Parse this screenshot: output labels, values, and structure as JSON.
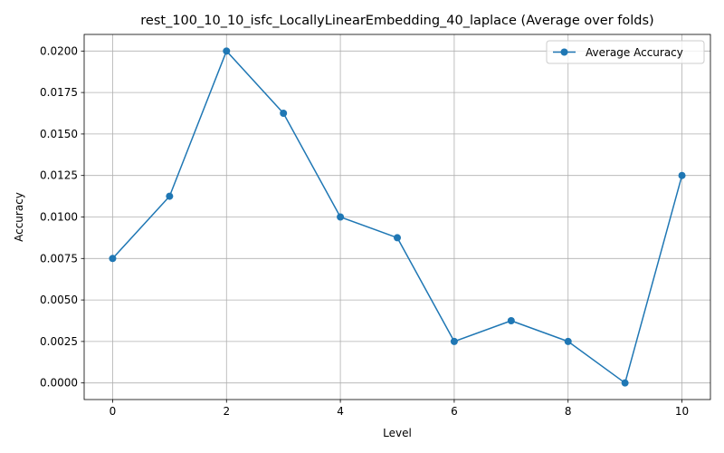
{
  "chart_data": {
    "type": "line",
    "title": "rest_100_10_10_isfc_LocallyLinearEmbedding_40_laplace (Average over folds)",
    "xlabel": "Level",
    "ylabel": "Accuracy",
    "xlim": [
      -0.5,
      10.5
    ],
    "ylim": [
      -0.001,
      0.021
    ],
    "xticks": [
      0,
      2,
      4,
      6,
      8,
      10
    ],
    "xtick_labels": [
      "0",
      "2",
      "4",
      "6",
      "8",
      "10"
    ],
    "yticks": [
      0.0,
      0.0025,
      0.005,
      0.0075,
      0.01,
      0.0125,
      0.015,
      0.0175,
      0.02
    ],
    "ytick_labels": [
      "0.0000",
      "0.0025",
      "0.0050",
      "0.0075",
      "0.0100",
      "0.0125",
      "0.0150",
      "0.0175",
      "0.0200"
    ],
    "grid": true,
    "legend_position": "top-right",
    "color": "#1f77b4",
    "series": [
      {
        "name": "Average Accuracy",
        "x": [
          0,
          1,
          2,
          3,
          4,
          5,
          6,
          7,
          8,
          9,
          10
        ],
        "values": [
          0.0075,
          0.01125,
          0.02,
          0.01625,
          0.01,
          0.00875,
          0.0025,
          0.00375,
          0.0025,
          0.0,
          0.0125
        ]
      }
    ]
  }
}
